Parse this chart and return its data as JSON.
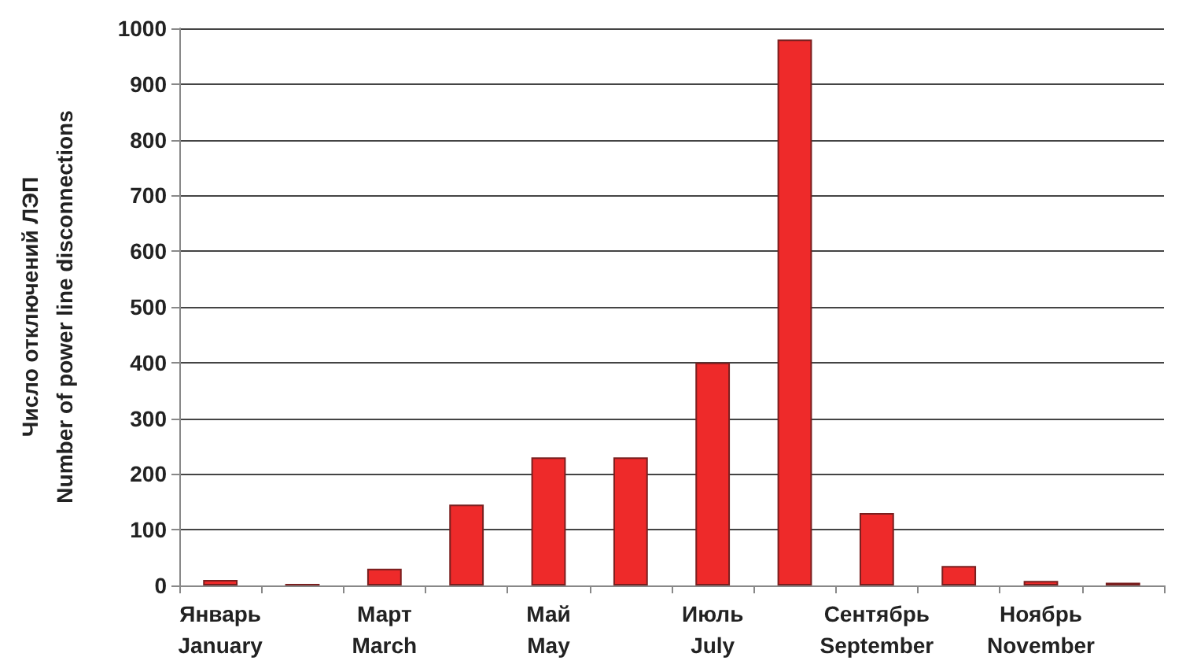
{
  "chart_data": {
    "type": "bar",
    "ylabel": "Число отключений ЛЭП\nNumber of power line disconnections",
    "categories": [
      "Январь\nJanuary",
      null,
      "Март\nMarch",
      null,
      "Май\nMay",
      null,
      "Июль\nJuly",
      null,
      "Сентябрь\nSeptember",
      null,
      "Ноябрь\nNovember",
      null
    ],
    "values": [
      10,
      3,
      30,
      145,
      230,
      230,
      400,
      980,
      130,
      35,
      8,
      5
    ],
    "color": "#ee2a2a",
    "ylim": [
      0,
      1000
    ],
    "yticks": [
      0,
      100,
      200,
      300,
      400,
      500,
      600,
      700,
      800,
      900,
      1000
    ],
    "grid": "y"
  }
}
